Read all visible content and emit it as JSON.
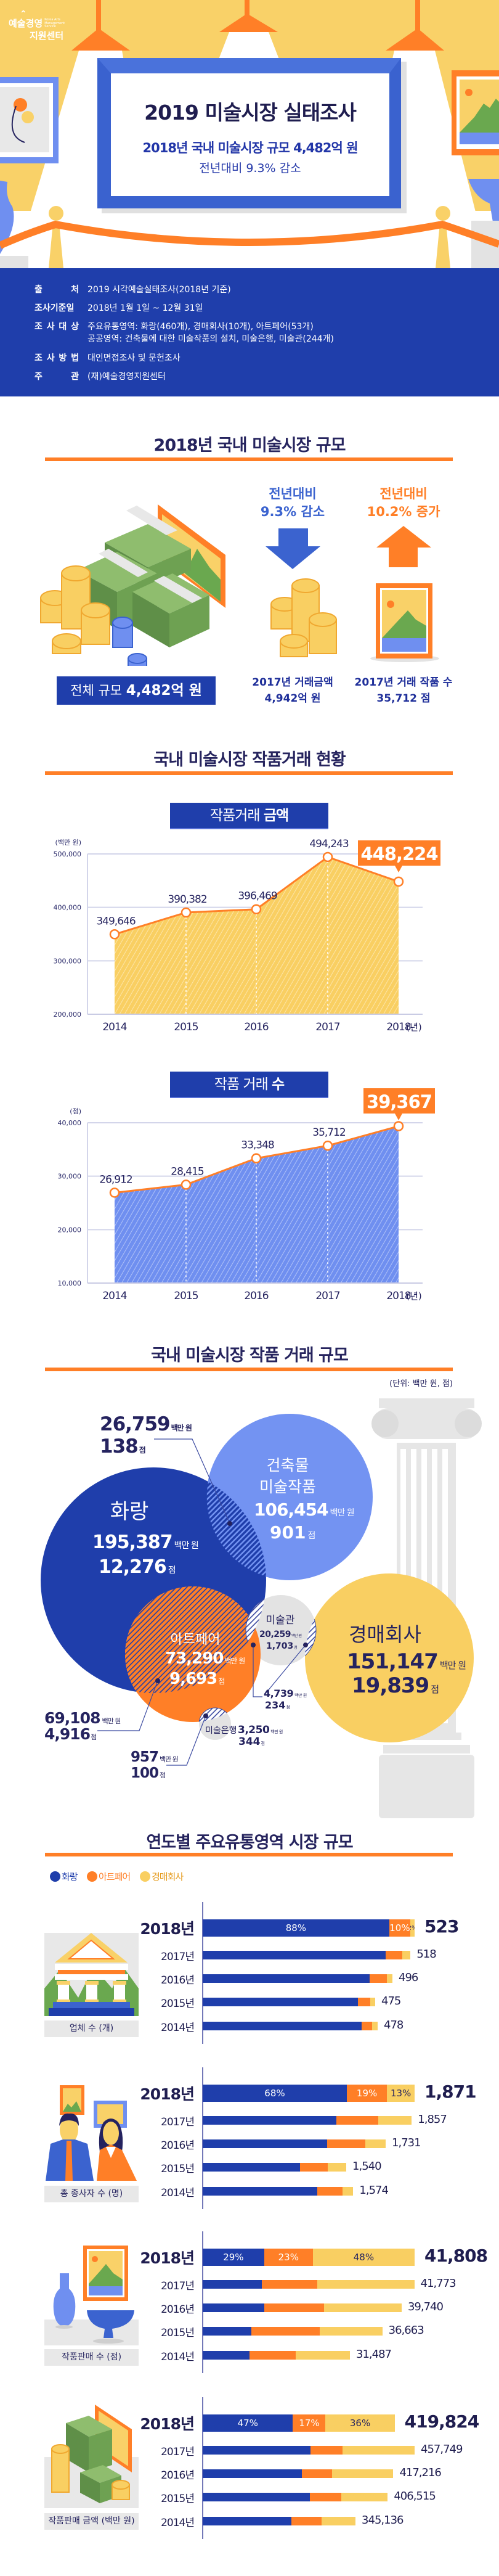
{
  "header": {
    "logo_ko_top": "예술경영",
    "logo_ko_bottom": "지원센터",
    "logo_en": "Korea Arts Management Service",
    "title": "2019 미술시장 실태조사",
    "subtitle": "2018년 국내 미술시장 규모 4,482억 원",
    "change": "전년대비 9.3% 감소"
  },
  "info": [
    {
      "label": "출 처",
      "lines": [
        "2019 시각예술실태조사(2018년 기준)"
      ]
    },
    {
      "label": "조사기준일",
      "lines": [
        "2018년 1월 1일 ~ 12월 31일"
      ]
    },
    {
      "label": "조 사 대 상",
      "lines": [
        "주요유통영역: 화랑(460개), 경매회사(10개), 아트페어(53개)",
        "공공영역: 건축물에 대한 미술작품의 설치, 미술은행, 미술관(244개)"
      ]
    },
    {
      "label": "조 사 방 법",
      "lines": [
        "대인면접조사 및 문헌조사"
      ]
    },
    {
      "label": "주 관",
      "lines": [
        "(재)예술경영지원센터"
      ]
    }
  ],
  "market_size": {
    "heading": "2018년 국내 미술시장 규모",
    "total_label": "전체 규모",
    "total_value": "4,482억 원",
    "decrease": {
      "line1": "전년대비",
      "line2": "9.3% 감소",
      "icon": "arrow-down-icon",
      "color": "#3b63cf"
    },
    "increase": {
      "line1": "전년대비",
      "line2": "10.2% 증가",
      "icon": "arrow-up-icon",
      "color": "#ff7f27"
    },
    "prev_amount": {
      "label": "2017년 거래금액",
      "value": "4,942억 원"
    },
    "prev_count": {
      "label": "2017년 거래 작품 수",
      "value": "35,712 점"
    }
  },
  "trends": {
    "heading": "국내 미술시장 작품거래 현황"
  },
  "chart_data": [
    {
      "type": "area",
      "title_regular": "작품거래",
      "title_bold": "금액",
      "unit": "(백만 원)",
      "x": [
        2014,
        2015,
        2016,
        2017,
        2018
      ],
      "x_suffix": "(년)",
      "values": [
        349646,
        390382,
        396469,
        494243,
        448224
      ],
      "value_labels": [
        "349,646",
        "390,382",
        "396,469",
        "494,243",
        "448,224"
      ],
      "ylim": [
        200000,
        500000
      ],
      "yticks": [
        200000,
        300000,
        400000,
        500000
      ],
      "ytick_labels": [
        "200,000",
        "300,000",
        "400,000",
        "500,000"
      ],
      "grid": true,
      "fill_color": "#f9cf62",
      "line_color": "#ff7f27",
      "highlight_color": "#ff7f27"
    },
    {
      "type": "area",
      "title_regular": "작품 거래",
      "title_bold": "수",
      "unit": "(점)",
      "x": [
        2014,
        2015,
        2016,
        2017,
        2018
      ],
      "x_suffix": "(년)",
      "values": [
        26912,
        28415,
        33348,
        35712,
        39367
      ],
      "value_labels": [
        "26,912",
        "28,415",
        "33,348",
        "35,712",
        "39,367"
      ],
      "ylim": [
        10000,
        40000
      ],
      "yticks": [
        10000,
        20000,
        30000,
        40000
      ],
      "ytick_labels": [
        "10,000",
        "20,000",
        "30,000",
        "40,000"
      ],
      "grid": true,
      "fill_color": "#6f8ff0",
      "line_color": "#ff7f27",
      "highlight_color": "#ff7f27"
    },
    {
      "type": "bar",
      "stacked": true,
      "orientation": "horizontal",
      "label": "업체 수 (개)",
      "categories": [
        "2018년",
        "2017년",
        "2016년",
        "2015년",
        "2014년"
      ],
      "totals": [
        523,
        518,
        496,
        475,
        478
      ],
      "total_labels": [
        "523",
        "518",
        "496",
        "475",
        "478"
      ],
      "series": [
        {
          "name": "화랑",
          "shares": [
            88,
            88,
            88,
            90,
            91
          ]
        },
        {
          "name": "아트페어",
          "shares": [
            10,
            8,
            9,
            7,
            6
          ]
        },
        {
          "name": "경매회사",
          "shares": [
            2,
            4,
            3,
            3,
            3
          ]
        }
      ],
      "share_labels": [
        "88%",
        "10%",
        "2%"
      ]
    },
    {
      "type": "bar",
      "stacked": true,
      "orientation": "horizontal",
      "label": "총 종사자 수 (명)",
      "categories": [
        "2018년",
        "2017년",
        "2016년",
        "2015년",
        "2014년"
      ],
      "totals": [
        1871,
        1857,
        1731,
        1540,
        1574
      ],
      "total_labels": [
        "1,871",
        "1,857",
        "1,731",
        "1,540",
        "1,574"
      ],
      "series": [
        {
          "name": "화랑",
          "shares": [
            68,
            64,
            68,
            68,
            76
          ]
        },
        {
          "name": "아트페어",
          "shares": [
            19,
            20,
            21,
            19,
            17
          ]
        },
        {
          "name": "경매회사",
          "shares": [
            13,
            16,
            11,
            13,
            7
          ]
        }
      ],
      "share_labels": [
        "68%",
        "19%",
        "13%"
      ]
    },
    {
      "type": "bar",
      "stacked": true,
      "orientation": "horizontal",
      "label": "작품판매 수 (점)",
      "categories": [
        "2018년",
        "2017년",
        "2016년",
        "2015년",
        "2014년"
      ],
      "totals": [
        41808,
        41773,
        39740,
        36663,
        31487
      ],
      "total_labels": [
        "41,808",
        "41,773",
        "39,740",
        "36,663",
        "31,487"
      ],
      "series": [
        {
          "name": "화랑",
          "shares": [
            29,
            28,
            31,
            27,
            32
          ]
        },
        {
          "name": "아트페어",
          "shares": [
            23,
            26,
            30,
            38,
            31
          ]
        },
        {
          "name": "경매회사",
          "shares": [
            48,
            46,
            39,
            35,
            37
          ]
        }
      ],
      "share_labels": [
        "29%",
        "23%",
        "48%"
      ]
    },
    {
      "type": "bar",
      "stacked": true,
      "orientation": "horizontal",
      "label": "작품판매 금액 (백만 원)",
      "categories": [
        "2018년",
        "2017년",
        "2016년",
        "2015년",
        "2014년"
      ],
      "totals": [
        419824,
        457749,
        417216,
        406515,
        345136
      ],
      "total_labels": [
        "419,824",
        "457,749",
        "417,216",
        "406,515",
        "345,136"
      ],
      "series": [
        {
          "name": "화랑",
          "shares": [
            47,
            51,
            52,
            58,
            58
          ]
        },
        {
          "name": "아트페어",
          "shares": [
            17,
            15,
            16,
            17,
            20
          ]
        },
        {
          "name": "경매회사",
          "shares": [
            36,
            34,
            32,
            25,
            22
          ]
        }
      ],
      "share_labels": [
        "47%",
        "17%",
        "36%"
      ]
    }
  ],
  "venn": {
    "heading": "국내 미술시장 작품 거래 규모",
    "unit": "(단위: 백만 원, 점)",
    "unit_amount": "백만 원",
    "unit_count": "점",
    "sets": {
      "gallery": {
        "name": "화랑",
        "amount": "195,387",
        "count": "12,276",
        "color": "#1f3eab"
      },
      "architecture": {
        "name_line1": "건축물",
        "name_line2": "미술작품",
        "amount": "106,454",
        "count": "901",
        "color": "#7393f2"
      },
      "artfair": {
        "name": "아트페어",
        "amount": "73,290",
        "count": "9,693",
        "color": "#ff7f27"
      },
      "museum": {
        "name": "미술관",
        "amount": "20,259",
        "count": "1,703",
        "color": "#e3e3e3"
      },
      "auction": {
        "name": "경매회사",
        "amount": "151,147",
        "count": "19,839",
        "color": "#f9cf62"
      },
      "artbank": {
        "name": "미술은행",
        "amount": "3,250",
        "count": "344",
        "color": "#e3e3e3"
      }
    },
    "overlaps": {
      "gallery_architecture": {
        "amount": "26,759",
        "count": "138"
      },
      "gallery_artfair": {
        "amount": "69,108",
        "count": "4,916"
      },
      "museum_overlap": {
        "amount": "4,739",
        "count": "234"
      },
      "artbank_artfair": {
        "amount": "957",
        "count": "100"
      }
    }
  },
  "distribution": {
    "heading": "연도별 주요유통영역 시장 규모",
    "legend": [
      {
        "name": "화랑",
        "color": "#1f3eab"
      },
      {
        "name": "아트페어",
        "color": "#ff7f27"
      },
      {
        "name": "경매회사",
        "color": "#f9cf62"
      }
    ]
  }
}
